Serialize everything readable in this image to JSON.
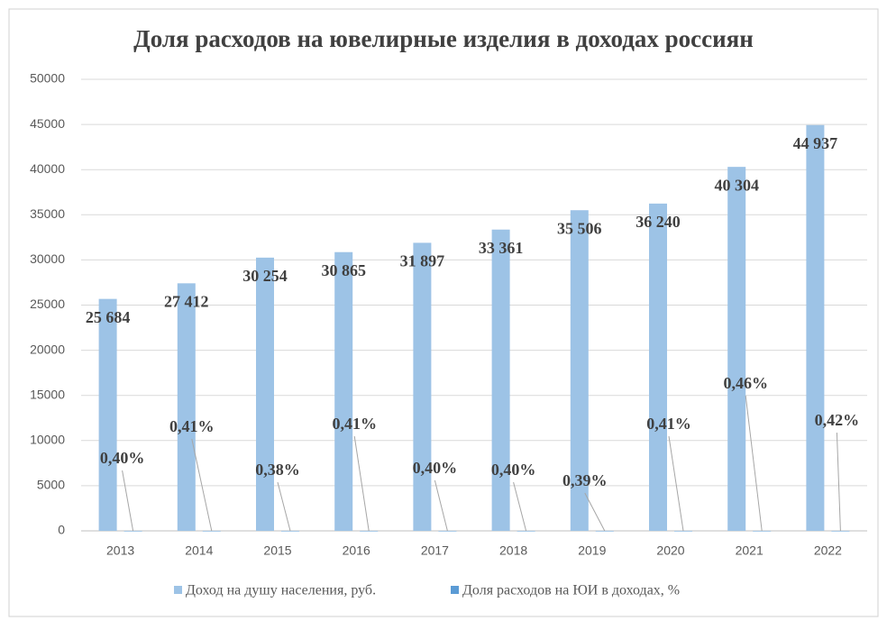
{
  "chart_data": {
    "type": "bar",
    "title": "Доля расходов на ювелирные изделия в доходах россиян",
    "categories": [
      "2013",
      "2014",
      "2015",
      "2016",
      "2017",
      "2018",
      "2019",
      "2020",
      "2021",
      "2022"
    ],
    "series": [
      {
        "name": "Доход на душу населения, руб.",
        "color": "#9dc3e6",
        "values": [
          25684,
          27412,
          30254,
          30865,
          31897,
          33361,
          35506,
          36240,
          40304,
          44937
        ],
        "value_labels": [
          "25 684",
          "27 412",
          "30 254",
          "30 865",
          "31 897",
          "33 361",
          "35 506",
          "36 240",
          "40 304",
          "44 937"
        ]
      },
      {
        "name": "Доля расходов на ЮИ в доходах, %",
        "color": "#5b9bd5",
        "values": [
          0.4,
          0.41,
          0.38,
          0.41,
          0.4,
          0.4,
          0.39,
          0.41,
          0.46,
          0.42
        ],
        "value_labels": [
          "0,40%",
          "0,41%",
          "0,38%",
          "0,41%",
          "0,40%",
          "0,40%",
          "0,39%",
          "0,41%",
          "0,46%",
          "0,42%"
        ]
      }
    ],
    "ylim": [
      0,
      50000
    ],
    "yticks": [
      0,
      5000,
      10000,
      15000,
      20000,
      25000,
      30000,
      35000,
      40000,
      45000,
      50000
    ],
    "grid": true,
    "legend": "bottom"
  }
}
